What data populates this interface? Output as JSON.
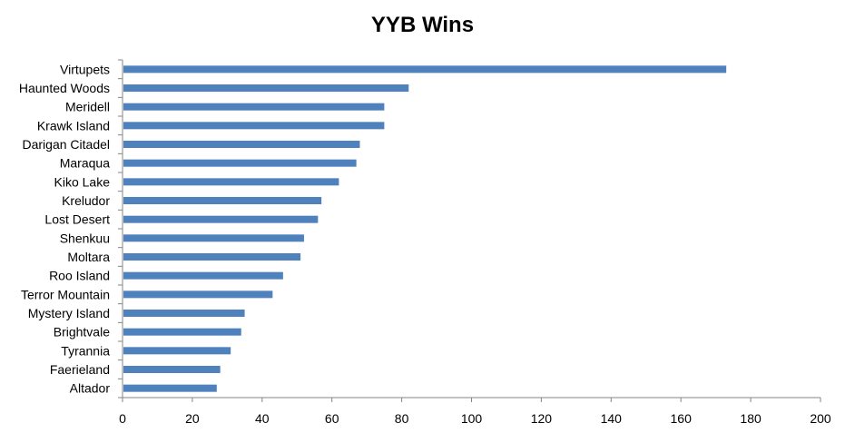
{
  "chart_data": {
    "type": "bar",
    "orientation": "horizontal",
    "title": "YYB Wins",
    "xlabel": "",
    "ylabel": "",
    "categories": [
      "Virtupets",
      "Haunted Woods",
      "Meridell",
      "Krawk Island",
      "Darigan Citadel",
      "Maraqua",
      "Kiko Lake",
      "Kreludor",
      "Lost Desert",
      "Shenkuu",
      "Moltara",
      "Roo Island",
      "Terror Mountain",
      "Mystery Island",
      "Brightvale",
      "Tyrannia",
      "Faerieland",
      "Altador"
    ],
    "values": [
      173,
      82,
      75,
      75,
      68,
      67,
      62,
      57,
      56,
      52,
      51,
      46,
      43,
      35,
      34,
      31,
      28,
      27
    ],
    "xlim": [
      0,
      200
    ],
    "xticks": [
      "0",
      "20",
      "40",
      "60",
      "80",
      "100",
      "120",
      "140",
      "160",
      "180",
      "200"
    ],
    "grid": false,
    "legend": "none",
    "bar_color": "#4f81bd",
    "axis_color": "#868686"
  }
}
